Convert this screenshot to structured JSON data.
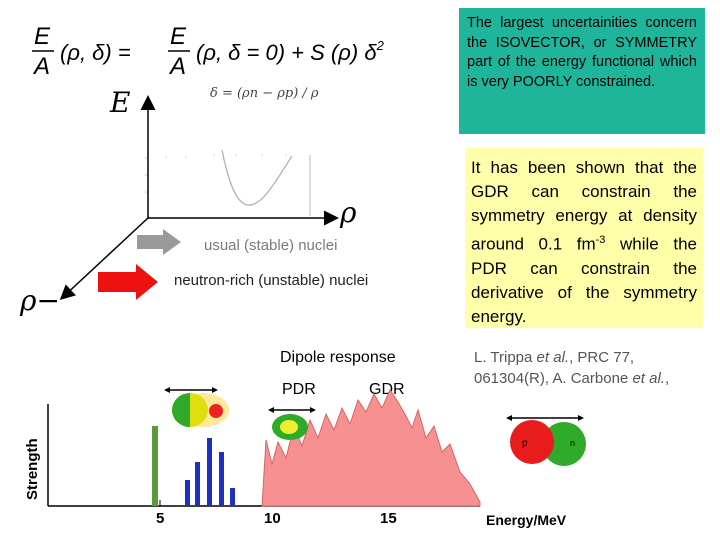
{
  "equations": {
    "main_formula": "E/A (ρ, δ) = E/A (ρ, δ = 0) + S (ρ) δ²",
    "delta_definition": "δ = (ρn − ρp) / ρ"
  },
  "axes_3d": {
    "e_label": "E",
    "rho_label": "ρ",
    "rho_minus_label": "ρ−"
  },
  "callouts": {
    "teal_text": "The largest uncertainities concern the ISOVECTOR, or SYMMETRY part of the energy functional which is very POORLY constrained.",
    "yellow_text_before": "It has been shown that the GDR can constrain the symmetry energy at density around 0.1 fm",
    "yellow_sup": "-3",
    "yellow_text_after": " while the PDR can constrain the derivative of the symmetry energy."
  },
  "arrows": {
    "usual_label": "usual (stable) nuclei",
    "neutron_rich_label": "neutron-rich (unstable) nuclei",
    "usual_color": "#9a9a9a",
    "neutron_rich_color": "#ee1111"
  },
  "dipole": {
    "title": "Dipole response",
    "pdr_label": "PDR",
    "gdr_label": "GDR"
  },
  "reference": {
    "line1": "L. Trippa et al., PRC 77,",
    "line2": "061304(R), A. Carbone et al.,"
  },
  "spectrum": {
    "y_label": "Strength",
    "x_label": "Energy/MeV",
    "x_ticks": [
      "5",
      "10",
      "15"
    ],
    "nucleon_labels": {
      "proton": "p",
      "neutron": "n"
    }
  }
}
